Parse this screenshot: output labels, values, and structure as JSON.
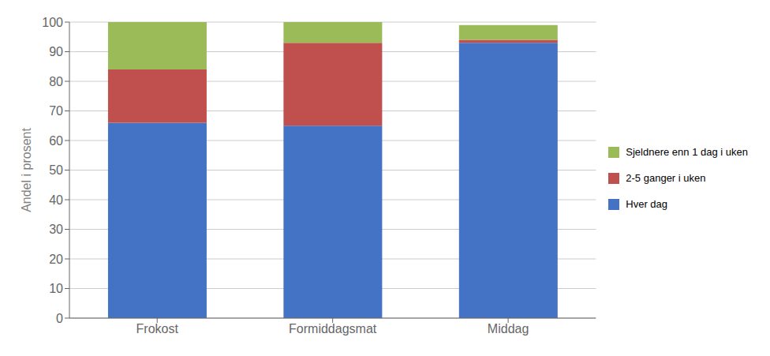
{
  "chart_data": {
    "type": "bar",
    "stacked": true,
    "ylabel": "Andel i prosent",
    "categories": [
      "Frokost",
      "Formiddagsmat",
      "Middag"
    ],
    "series": [
      {
        "name": "Hver dag",
        "color": "#4472C4",
        "values": [
          66,
          65,
          93
        ]
      },
      {
        "name": "2-5 ganger i uken",
        "color": "#C0504D",
        "values": [
          18,
          28,
          1
        ]
      },
      {
        "name": "Sjeldnere enn 1 dag i uken",
        "color": "#9BBB59",
        "values": [
          16,
          7,
          5
        ]
      }
    ],
    "ylim": [
      0,
      100
    ],
    "yticks": [
      0,
      10,
      20,
      30,
      40,
      50,
      60,
      70,
      80,
      90,
      100
    ],
    "grid": true,
    "legend": "right"
  }
}
